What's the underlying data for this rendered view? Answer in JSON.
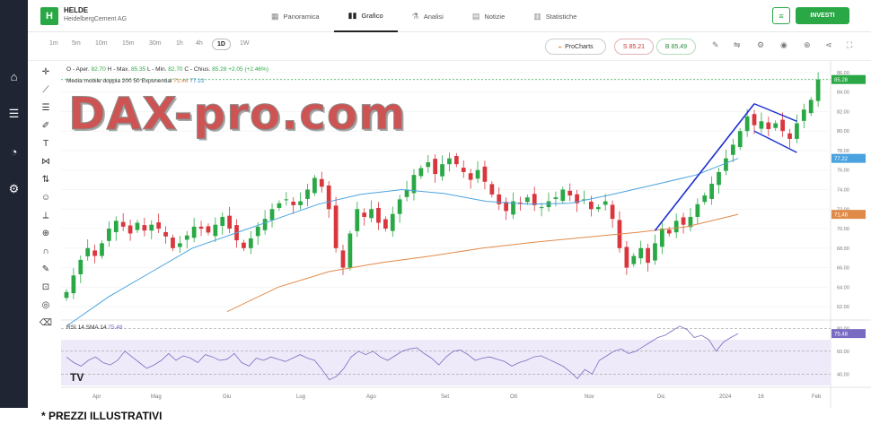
{
  "sidebar": {
    "items": [
      {
        "icon": "home-icon",
        "glyph": "⌂"
      },
      {
        "icon": "list-icon",
        "glyph": "☰"
      },
      {
        "icon": "pie-icon",
        "glyph": "◔"
      },
      {
        "icon": "settings-icon",
        "glyph": "⚙"
      }
    ]
  },
  "header": {
    "logo_letter": "H",
    "symbol": "HELDE",
    "company": "HeidelbergCement AG",
    "tabs": [
      {
        "label": "Panoramica",
        "icon": "grid-icon",
        "glyph": "▦"
      },
      {
        "label": "Grafico",
        "icon": "candles-icon",
        "glyph": "▮▮",
        "active": true
      },
      {
        "label": "Analisi",
        "icon": "flask-icon",
        "glyph": "⚗"
      },
      {
        "label": "Notizie",
        "icon": "news-icon",
        "glyph": "▤"
      },
      {
        "label": "Statistiche",
        "icon": "stats-icon",
        "glyph": "▥"
      }
    ],
    "invest_label": "INVESTI"
  },
  "toolbar": {
    "timeframes": [
      "1m",
      "5m",
      "10m",
      "15m",
      "30m",
      "1h",
      "4h",
      "1D",
      "1W"
    ],
    "active_timeframe": "1D",
    "prochart_label": "ProCharts",
    "sell_label": "S 85.21",
    "buy_label": "B 85.49"
  },
  "legend": {
    "ohlc_prefix": "O - Aper.",
    "open": "82.70",
    "high_label": "H - Max.",
    "high": "85.35",
    "low_label": "L - Min.",
    "low": "82.70",
    "close_label": "C - Chius.",
    "close": "85.28",
    "change": "+2.05 (+2.46%)",
    "ma_label": "Media mobile doppia 200 50 Exponential",
    "ma200": "71.46",
    "ma50": "77.22",
    "rsi_label": "RSI 14 SMA 14",
    "rsi_value": "75.48"
  },
  "watermark": "DAX-pro.com",
  "tv_logo": "TV",
  "footnote": "* PREZZI ILLUSTRATIVI",
  "colors": {
    "up": "#2aa845",
    "down": "#d9363e",
    "ma50": "#4aa3df",
    "ma200": "#e08a4a",
    "rsi": "#7a6bc2",
    "trendline": "#1b2fd1"
  },
  "chart_data": {
    "type": "candlestick",
    "x_labels": [
      "Apr",
      "Mag",
      "Giu",
      "Lug",
      "Ago",
      "Set",
      "Ott",
      "Nov",
      "Dic",
      "2024",
      "16",
      "Feb"
    ],
    "y_ticks": [
      62,
      64,
      66,
      68,
      70,
      72,
      74,
      76,
      78,
      80,
      82,
      84,
      86
    ],
    "ylim": [
      61,
      87
    ],
    "price_labels": {
      "last": "85.28",
      "ma50": "77.22",
      "ma200": "71.46"
    },
    "rsi_ticks": [
      40,
      60,
      80
    ],
    "rsi_ylim": [
      30,
      85
    ],
    "closes": [
      63.5,
      65.2,
      66.8,
      68.0,
      67.2,
      68.5,
      70.0,
      70.8,
      70.2,
      69.5,
      70.6,
      69.8,
      70.4,
      70.0,
      69.2,
      68.0,
      68.5,
      69.3,
      70.2,
      70.0,
      69.6,
      70.4,
      71.2,
      70.0,
      68.8,
      68.0,
      69.0,
      70.2,
      71.0,
      72.0,
      72.6,
      73.0,
      72.4,
      72.8,
      74.0,
      75.2,
      74.3,
      72.0,
      68.0,
      66.0,
      69.5,
      72.0,
      71.2,
      72.0,
      70.6,
      70.0,
      71.5,
      73.0,
      74.0,
      75.5,
      76.2,
      76.8,
      75.6,
      76.6,
      77.2,
      76.6,
      75.8,
      75.0,
      76.0,
      74.8,
      73.5,
      72.5,
      71.8,
      72.8,
      72.6,
      73.2,
      72.4,
      72.2,
      72.8,
      73.2,
      74.0,
      73.4,
      72.6,
      73.0,
      72.0,
      72.2,
      72.8,
      71.0,
      68.0,
      66.0,
      67.2,
      68.0,
      66.5,
      68.5,
      70.0,
      69.5,
      70.8,
      70.4,
      71.2,
      72.5,
      73.4,
      74.6,
      75.8,
      77.2,
      78.6,
      80.0,
      81.5,
      80.6,
      81.0,
      80.2,
      80.8,
      80.0,
      79.2,
      80.8,
      82.2,
      83.2,
      85.28
    ],
    "ma50": [
      60,
      63,
      65.5,
      68,
      69.5,
      71,
      72.5,
      73.5,
      74,
      73.6,
      72.8,
      72.5,
      72.6,
      73.5,
      74.5,
      75.5,
      77.2
    ],
    "ma200": [
      61.5,
      64,
      65.6,
      66.5,
      67.2,
      68.0,
      68.6,
      69.1,
      69.6,
      70.2,
      71.46
    ],
    "rsi": [
      55,
      50,
      47,
      52,
      55,
      50,
      48,
      52,
      60,
      55,
      50,
      45,
      48,
      52,
      58,
      52,
      56,
      54,
      50,
      57,
      55,
      52,
      53,
      58,
      50,
      47,
      54,
      52,
      55,
      53,
      51,
      54,
      57,
      54,
      52,
      44,
      35,
      38,
      45,
      55,
      60,
      57,
      60,
      55,
      52,
      56,
      60,
      62,
      63,
      58,
      54,
      48,
      55,
      60,
      61,
      57,
      52,
      54,
      55,
      53,
      51,
      47,
      50,
      52,
      55,
      56,
      53,
      50,
      47,
      42,
      36,
      44,
      40,
      52,
      56,
      60,
      62,
      58,
      60,
      64,
      68,
      72,
      74,
      78,
      82,
      79,
      72,
      74,
      70,
      60,
      68,
      72,
      75.48
    ]
  }
}
